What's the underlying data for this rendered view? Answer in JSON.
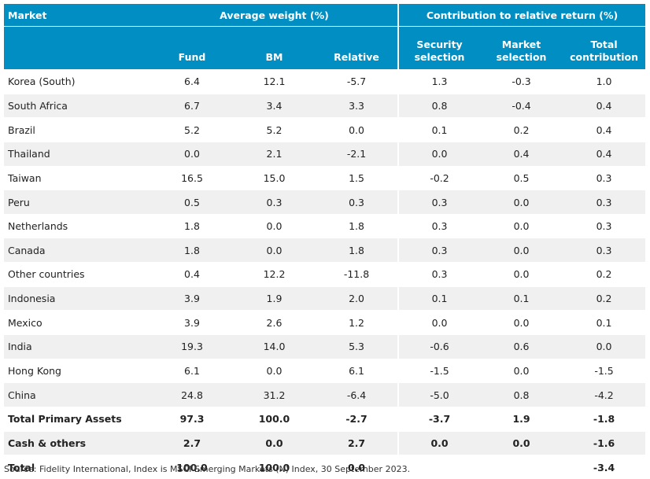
{
  "headers": {
    "market": "Market",
    "group_weight": "Average weight (%)",
    "group_contribution": "Contribution to relative return (%)",
    "fund": "Fund",
    "bm": "BM",
    "relative": "Relative",
    "security_selection_1": "Security",
    "security_selection_2": "selection",
    "market_selection_1": "Market",
    "market_selection_2": "selection",
    "total_contribution_1": "Total",
    "total_contribution_2": "contribution"
  },
  "rows": [
    {
      "market": "Korea (South)",
      "fund": "6.4",
      "bm": "12.1",
      "relative": "-5.7",
      "security": "1.3",
      "market_sel": "-0.3",
      "total": "1.0"
    },
    {
      "market": "South Africa",
      "fund": "6.7",
      "bm": "3.4",
      "relative": "3.3",
      "security": "0.8",
      "market_sel": "-0.4",
      "total": "0.4"
    },
    {
      "market": "Brazil",
      "fund": "5.2",
      "bm": "5.2",
      "relative": "0.0",
      "security": "0.1",
      "market_sel": "0.2",
      "total": "0.4"
    },
    {
      "market": "Thailand",
      "fund": "0.0",
      "bm": "2.1",
      "relative": "-2.1",
      "security": "0.0",
      "market_sel": "0.4",
      "total": "0.4"
    },
    {
      "market": "Taiwan",
      "fund": "16.5",
      "bm": "15.0",
      "relative": "1.5",
      "security": "-0.2",
      "market_sel": "0.5",
      "total": "0.3"
    },
    {
      "market": "Peru",
      "fund": "0.5",
      "bm": "0.3",
      "relative": "0.3",
      "security": "0.3",
      "market_sel": "0.0",
      "total": "0.3"
    },
    {
      "market": "Netherlands",
      "fund": "1.8",
      "bm": "0.0",
      "relative": "1.8",
      "security": "0.3",
      "market_sel": "0.0",
      "total": "0.3"
    },
    {
      "market": "Canada",
      "fund": "1.8",
      "bm": "0.0",
      "relative": "1.8",
      "security": "0.3",
      "market_sel": "0.0",
      "total": "0.3"
    },
    {
      "market": "Other countries",
      "fund": "0.4",
      "bm": "12.2",
      "relative": "-11.8",
      "security": "0.3",
      "market_sel": "0.0",
      "total": "0.2"
    },
    {
      "market": "Indonesia",
      "fund": "3.9",
      "bm": "1.9",
      "relative": "2.0",
      "security": "0.1",
      "market_sel": "0.1",
      "total": "0.2"
    },
    {
      "market": "Mexico",
      "fund": "3.9",
      "bm": "2.6",
      "relative": "1.2",
      "security": "0.0",
      "market_sel": "0.0",
      "total": "0.1"
    },
    {
      "market": "India",
      "fund": "19.3",
      "bm": "14.0",
      "relative": "5.3",
      "security": "-0.6",
      "market_sel": "0.6",
      "total": "0.0"
    },
    {
      "market": "Hong Kong",
      "fund": "6.1",
      "bm": "0.0",
      "relative": "6.1",
      "security": "-1.5",
      "market_sel": "0.0",
      "total": "-1.5"
    },
    {
      "market": "China",
      "fund": "24.8",
      "bm": "31.2",
      "relative": "-6.4",
      "security": "-5.0",
      "market_sel": "0.8",
      "total": "-4.2"
    },
    {
      "market": "Total Primary Assets",
      "fund": "97.3",
      "bm": "100.0",
      "relative": "-2.7",
      "security": "-3.7",
      "market_sel": "1.9",
      "total": "-1.8"
    },
    {
      "market": "Cash & others",
      "fund": "2.7",
      "bm": "0.0",
      "relative": "2.7",
      "security": "0.0",
      "market_sel": "0.0",
      "total": "-1.6"
    },
    {
      "market": "Total",
      "fund": "100.0",
      "bm": "100.0",
      "relative": "0.0",
      "security": "",
      "market_sel": "",
      "total": "-3.4"
    }
  ],
  "footnote": "Source: Fidelity International, Index is MSCI Emerging Markets (N) Index, 30 September 2023."
}
